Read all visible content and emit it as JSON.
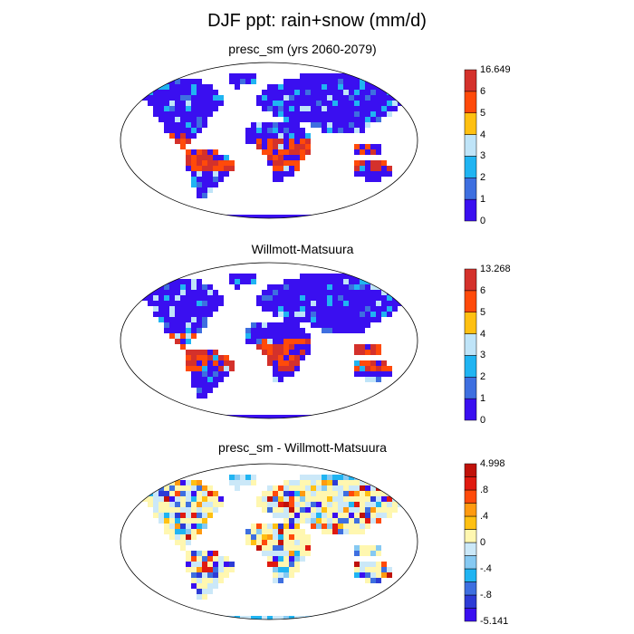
{
  "title": "DJF ppt: rain+snow (mm/d)",
  "panels": [
    {
      "title": "presc_sm (yrs 2060-2079)",
      "colorbar": {
        "colors": [
          "#3a0ff0",
          "#3e6fe0",
          "#20b4f2",
          "#bfe4f8",
          "#ffc012",
          "#ff4a0a",
          "#d4312b"
        ],
        "labels": [
          "16.649",
          "6",
          "5",
          "4",
          "3",
          "2",
          "1",
          "0"
        ]
      }
    },
    {
      "title": "Willmott-Matsuura",
      "colorbar": {
        "colors": [
          "#3a0ff0",
          "#3e6fe0",
          "#20b4f2",
          "#bfe4f8",
          "#ffc012",
          "#ff4a0a",
          "#d4312b"
        ],
        "labels": [
          "13.268",
          "6",
          "5",
          "4",
          "3",
          "2",
          "1",
          "0"
        ]
      }
    },
    {
      "title": "presc_sm - Willmott-Matsuura",
      "colorbar": {
        "colors": [
          "#3a0ff0",
          "#2d3bd6",
          "#3e6fe0",
          "#20b4f2",
          "#86c9f2",
          "#cbe8f8",
          "#fff7b0",
          "#ffc012",
          "#ff9a10",
          "#ff4a0a",
          "#e01a10",
          "#c0120a"
        ],
        "labels": [
          "4.998",
          ".8",
          ".4",
          "0",
          "-.4",
          "-.8",
          "-5.141"
        ]
      }
    }
  ]
}
